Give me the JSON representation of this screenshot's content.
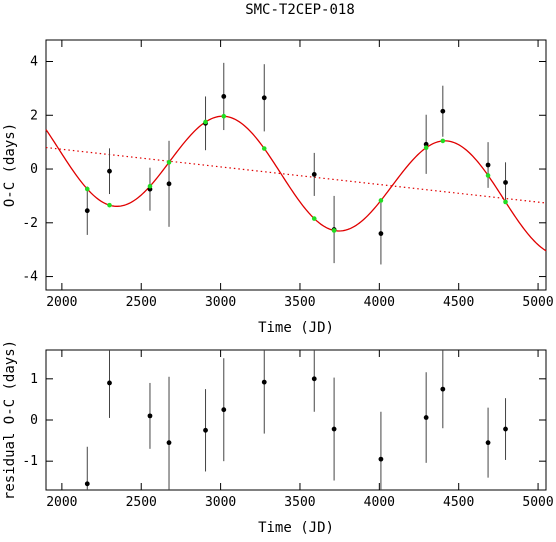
{
  "chart_data": [
    {
      "type": "scatter",
      "title": "SMC-T2CEP-018",
      "xlabel": "Time (JD)",
      "ylabel": "O-C (days)",
      "xlim": [
        1900,
        5050
      ],
      "ylim": [
        -4.5,
        4.8
      ],
      "x_ticks": [
        2000,
        2500,
        3000,
        3500,
        4000,
        4500,
        5000
      ],
      "y_ticks": [
        -4,
        -2,
        0,
        2,
        4
      ],
      "grid": false,
      "colors": {
        "observed": "#000000",
        "model": "#e00000",
        "model_points": "#22dd22",
        "trend": "#e00000"
      },
      "series": [
        {
          "role": "observed",
          "x": [
            2160,
            2300,
            2555,
            2675,
            2905,
            3020,
            3275,
            3590,
            3715,
            4010,
            4295,
            4400,
            4685,
            4795
          ],
          "y": [
            -1.55,
            -0.08,
            -0.75,
            -0.55,
            1.7,
            2.7,
            2.65,
            -0.2,
            -2.25,
            -2.4,
            0.92,
            2.15,
            0.15,
            -0.5
          ],
          "err": [
            0.9,
            0.85,
            0.8,
            1.6,
            1.0,
            1.25,
            1.25,
            0.8,
            1.25,
            1.15,
            1.1,
            0.95,
            0.85,
            0.75
          ]
        },
        {
          "role": "model",
          "offset": 0.8,
          "slope_per_day": -0.000655,
          "ref_x": 1900,
          "amplitude": 1.9,
          "period_days": 1400,
          "phase_ref_x": 2680
        }
      ]
    },
    {
      "type": "scatter",
      "xlabel": "Time (JD)",
      "ylabel": "residual O-C (days)",
      "xlim": [
        1900,
        5050
      ],
      "ylim": [
        -1.7,
        1.7
      ],
      "x_ticks": [
        2000,
        2500,
        3000,
        3500,
        4000,
        4500,
        5000
      ],
      "y_ticks": [
        -1,
        0,
        1
      ],
      "grid": false,
      "series": [
        {
          "role": "residual",
          "x": [
            2160,
            2300,
            2555,
            2675,
            2905,
            3020,
            3275,
            3590,
            3715,
            4010,
            4295,
            4400,
            4685,
            4795
          ],
          "y": [
            -1.55,
            0.9,
            0.1,
            -0.55,
            -0.25,
            0.25,
            0.92,
            1.0,
            -0.22,
            -0.95,
            0.06,
            0.75,
            -0.55,
            -0.22
          ],
          "err": [
            0.9,
            0.85,
            0.8,
            1.6,
            1.0,
            1.25,
            1.25,
            0.8,
            1.25,
            1.15,
            1.1,
            0.95,
            0.85,
            0.75
          ]
        }
      ]
    }
  ]
}
